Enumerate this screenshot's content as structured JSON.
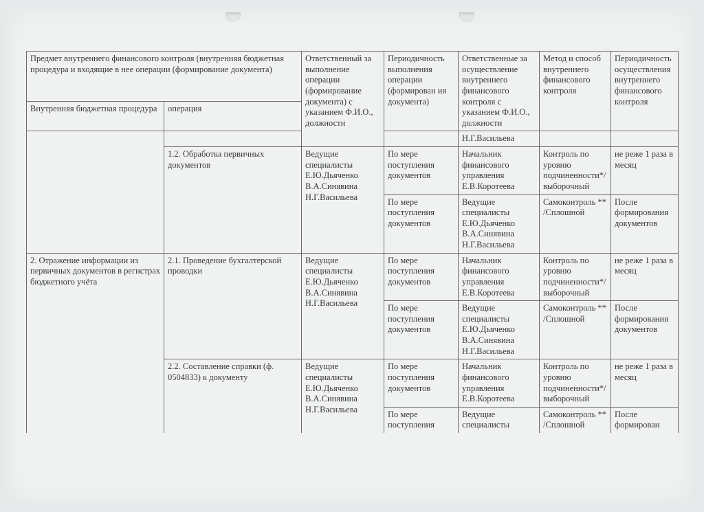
{
  "page": {
    "background_color": "#e6eaea",
    "paper_color": "#f0f2f1",
    "text_color": "#393a3a",
    "border_color": "#6b6b6b",
    "font_family": "Times New Roman",
    "font_size_pt": 10
  },
  "header": {
    "merged_top": "Предмет внутреннего финансового контроля (внутренняя бюджетная процедура и входящие в нее операции (формирование документа)",
    "sub_left": "Внутренняя бюджетная процедура",
    "sub_right": "операция",
    "col3": "Ответственный за выполнение операции (формирование документа) с указанием Ф.И.О., должности",
    "col4": "Периодичность выполнения операции (формирован ия документа)",
    "col5": "Ответственные за осуществление внутреннего финансового контроля с указанием Ф.И.О., должности",
    "col6": "Метод и способ внутреннего финансового контроля",
    "col7": "Периодичность осуществления внутреннего финансового контроля"
  },
  "rows": {
    "r0": {
      "c5": "Н.Г.Васильева"
    },
    "r1": {
      "c2": "1.2. Обработка первичных документов",
      "c3": "Ведущие специалисты Е.Ю.Дьяченко В.А.Синявина Н.Г.Васильева",
      "c4": "По мере поступления документов",
      "c5": "Начальник финансового управления Е.В.Коротеева",
      "c6": "Контроль по уровню подчиненности*/ выборочный",
      "c7": "не реже 1 раза в месяц"
    },
    "r2": {
      "c4": "По мере поступления документов",
      "c5": "Ведущие специалисты Е.Ю.Дьяченко В.А.Синявина Н.Г.Васильева",
      "c6": "Самоконтроль ** /Сплошной",
      "c7": "После формирования документов"
    },
    "r3": {
      "c1": "2. Отражение информации из первичных документов в регистрах бюджетного учёта",
      "c2": "2.1. Проведение бухгалтерской проводки",
      "c3": "Ведущие специалисты Е.Ю.Дьяченко В.А.Синявина Н.Г.Васильева",
      "c4": "По мере поступления документов",
      "c5": "Начальник финансового управления Е.В.Коротеева",
      "c6": "Контроль по уровню подчиненности*/ выборочный",
      "c7": "не реже 1 раза в месяц"
    },
    "r4": {
      "c4": "По мере поступления документов",
      "c5": "Ведущие специалисты Е.Ю.Дьяченко В.А.Синявина Н.Г.Васильева",
      "c6": "Самоконтроль ** /Сплошной",
      "c7": "После формирования документов"
    },
    "r5": {
      "c2": "2.2.  Составление справки (ф. 0504833) к документу",
      "c3": "Ведущие специалисты Е.Ю.Дьяченко В.А.Синявина Н.Г.Васильева",
      "c4": "По мере поступления документов",
      "c5": "Начальник финансового управления Е.В.Коротеева",
      "c6": "Контроль по уровню подчиненности*/ выборочный",
      "c7": "не реже 1 раза в месяц"
    },
    "r6": {
      "c4": "По мере поступления",
      "c5": "Ведущие специалисты",
      "c6": "Самоконтроль ** /Сплошной",
      "c7": "После формирован"
    }
  }
}
